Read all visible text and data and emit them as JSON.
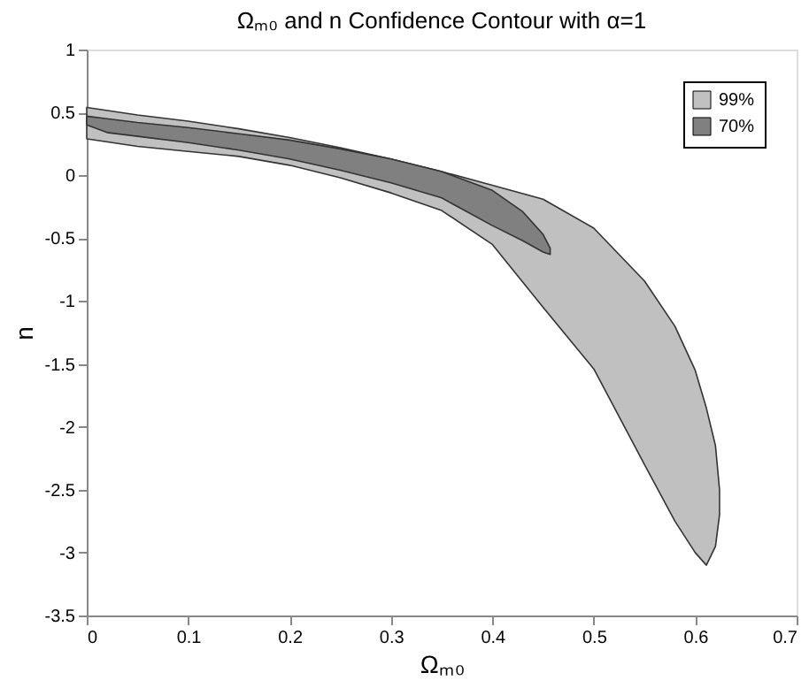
{
  "chart_data": {
    "type": "area",
    "title": "Ωₘ₀ and n Confidence Contour with α=1",
    "xlabel": "Ωₘ₀",
    "ylabel": "n",
    "xlim": [
      0,
      0.7
    ],
    "xticks": [
      0,
      0.1,
      0.2,
      0.3,
      0.4,
      0.5,
      0.6,
      0.7
    ],
    "ylim": [
      -3.5,
      1
    ],
    "yticks": [
      -3.5,
      -3,
      -2.5,
      -2,
      -1.5,
      -1,
      -0.5,
      0,
      0.5,
      1
    ],
    "grid": false,
    "legend": "top right",
    "series": [
      {
        "name": "99%",
        "color": "#c0c0c0",
        "type": "area",
        "x": [
          0,
          0.05,
          0.1,
          0.15,
          0.2,
          0.25,
          0.3,
          0.35,
          0.4,
          0.45,
          0.5,
          0.55,
          0.58,
          0.6,
          0.611,
          0.62,
          0.624,
          0.624,
          0.62,
          0.611,
          0.6,
          0.58,
          0.55,
          0.5,
          0.45,
          0.4,
          0.35,
          0.3,
          0.25,
          0.2,
          0.15,
          0.1,
          0.05,
          0
        ],
        "values": [
          0.54,
          0.48,
          0.43,
          0.37,
          0.3,
          0.22,
          0.13,
          0.03,
          -0.08,
          -0.19,
          -0.42,
          -0.84,
          -1.2,
          -1.55,
          -1.85,
          -2.15,
          -2.5,
          -2.7,
          -2.95,
          -3.1,
          -3.0,
          -2.75,
          -2.3,
          -1.54,
          -1.05,
          -0.55,
          -0.28,
          -0.14,
          -0.02,
          0.08,
          0.15,
          0.19,
          0.23,
          0.29
        ]
      },
      {
        "name": "70%",
        "color": "#808080",
        "type": "area",
        "x": [
          0,
          0.02,
          0.05,
          0.1,
          0.15,
          0.2,
          0.25,
          0.3,
          0.35,
          0.4,
          0.43,
          0.45,
          0.457,
          0.457,
          0.45,
          0.43,
          0.4,
          0.35,
          0.3,
          0.25,
          0.2,
          0.15,
          0.1,
          0.05,
          0.02,
          0
        ],
        "values": [
          0.47,
          0.45,
          0.42,
          0.38,
          0.33,
          0.28,
          0.21,
          0.13,
          0.03,
          -0.12,
          -0.29,
          -0.47,
          -0.58,
          -0.63,
          -0.61,
          -0.52,
          -0.4,
          -0.18,
          -0.06,
          0.04,
          0.13,
          0.2,
          0.26,
          0.31,
          0.34,
          0.4
        ]
      }
    ]
  }
}
